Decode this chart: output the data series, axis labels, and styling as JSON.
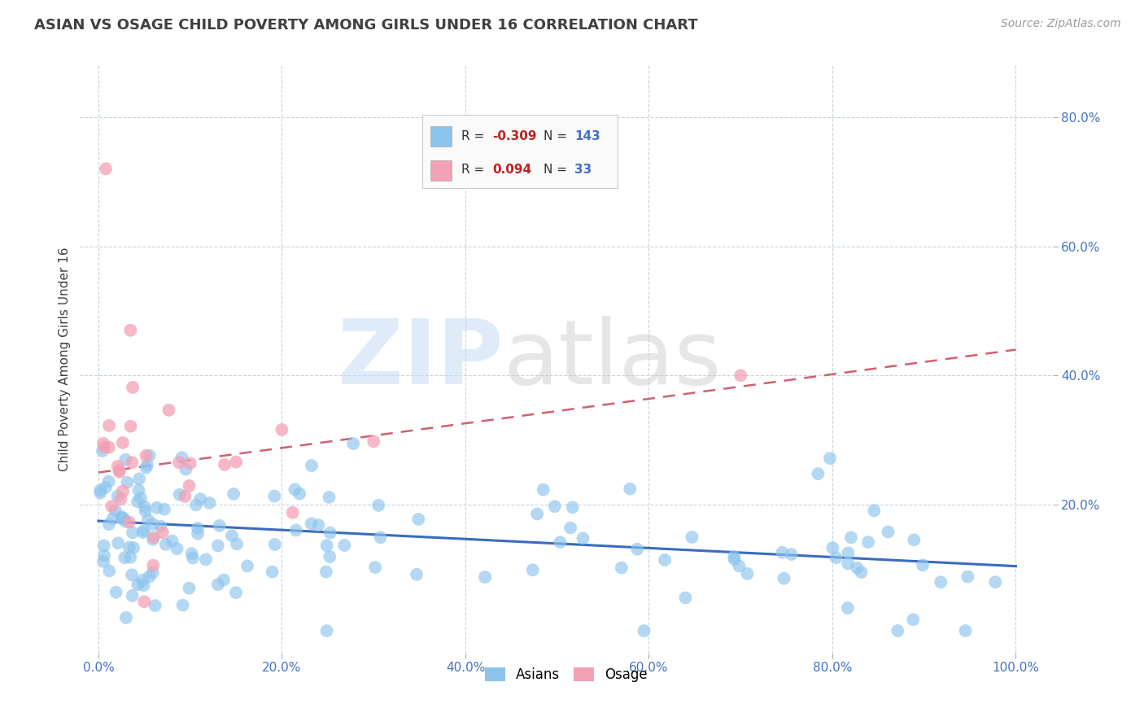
{
  "title": "ASIAN VS OSAGE CHILD POVERTY AMONG GIRLS UNDER 16 CORRELATION CHART",
  "source": "Source: ZipAtlas.com",
  "xlabel_vals": [
    0.0,
    20.0,
    40.0,
    60.0,
    80.0,
    100.0
  ],
  "ylabel": "Child Poverty Among Girls Under 16",
  "ylabel_vals": [
    20.0,
    40.0,
    60.0,
    80.0
  ],
  "xlim": [
    -2,
    104
  ],
  "ylim": [
    -3,
    88
  ],
  "asian_R": -0.309,
  "asian_N": 143,
  "osage_R": 0.094,
  "osage_N": 33,
  "asian_color": "#8DC4ED",
  "osage_color": "#F4A0B5",
  "asian_line_color": "#3A6BBF",
  "osage_line_color": "#D06070",
  "title_color": "#404040",
  "axis_label_color": "#4472C4",
  "grid_color": "#C8D4DC",
  "background_color": "#FFFFFF",
  "legend_asian_R": "-0.309",
  "legend_asian_N": "143",
  "legend_osage_R": "0.094",
  "legend_osage_N": "33",
  "asian_line_start_y": 17.5,
  "asian_line_end_y": 10.5,
  "osage_line_start_y": 25.0,
  "osage_line_end_y": 44.0
}
